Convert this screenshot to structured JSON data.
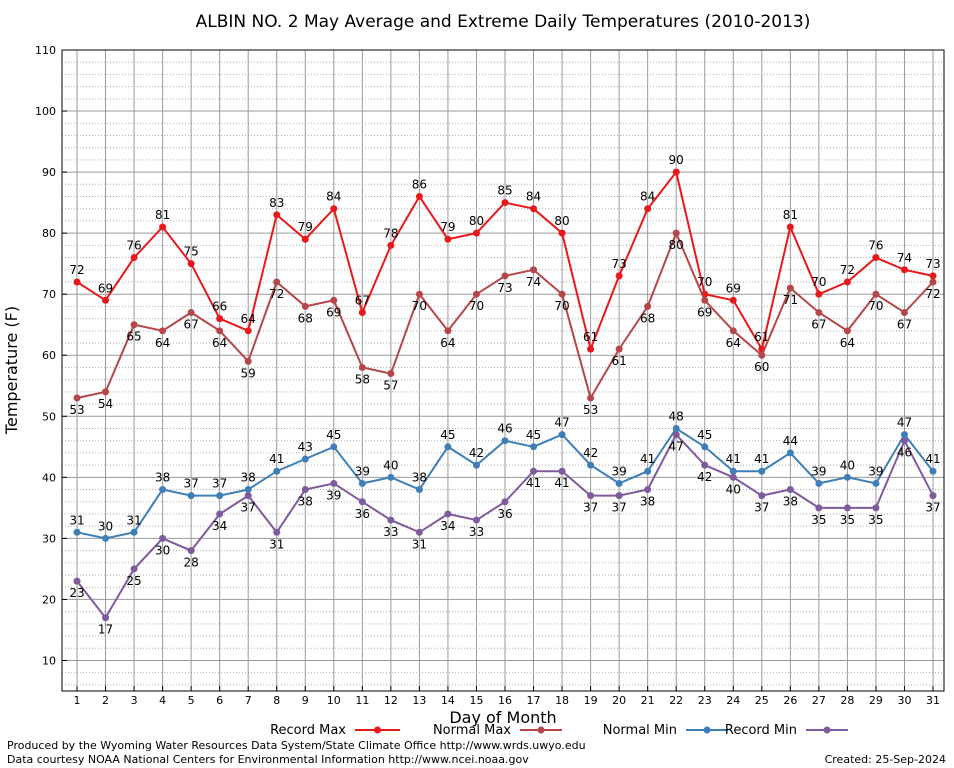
{
  "chart_data": {
    "type": "line",
    "title": "ALBIN NO. 2 May Average and Extreme Daily Temperatures (2010-2013)",
    "xlabel": "Day of Month",
    "ylabel": "Temperature (F)",
    "ylim": [
      5,
      110
    ],
    "yticks": [
      10,
      20,
      30,
      40,
      50,
      60,
      70,
      80,
      90,
      100,
      110
    ],
    "x": [
      1,
      2,
      3,
      4,
      5,
      6,
      7,
      8,
      9,
      10,
      11,
      12,
      13,
      14,
      15,
      16,
      17,
      18,
      19,
      20,
      21,
      22,
      23,
      24,
      25,
      26,
      27,
      28,
      29,
      30,
      31
    ],
    "grid": true,
    "legend_position": "bottom",
    "series": [
      {
        "name": "Record Max",
        "color": "#e8191c",
        "values": [
          72,
          69,
          76,
          81,
          75,
          66,
          64,
          83,
          79,
          84,
          67,
          78,
          86,
          79,
          80,
          85,
          84,
          80,
          61,
          73,
          84,
          90,
          70,
          69,
          61,
          81,
          70,
          72,
          76,
          74,
          73
        ]
      },
      {
        "name": "Normal Max",
        "color": "#b5474b",
        "values": [
          53,
          54,
          65,
          64,
          67,
          64,
          59,
          72,
          68,
          69,
          58,
          57,
          70,
          64,
          70,
          73,
          74,
          70,
          53,
          61,
          68,
          80,
          69,
          64,
          60,
          71,
          67,
          64,
          70,
          67,
          72
        ]
      },
      {
        "name": "Normal Min",
        "color": "#3f7fb8",
        "values": [
          31,
          30,
          31,
          38,
          37,
          37,
          38,
          41,
          43,
          45,
          39,
          40,
          38,
          45,
          42,
          46,
          45,
          47,
          42,
          39,
          41,
          48,
          45,
          41,
          41,
          44,
          39,
          40,
          39,
          47,
          41
        ]
      },
      {
        "name": "Record Min",
        "color": "#7f5a9c",
        "values": [
          23,
          17,
          25,
          30,
          28,
          34,
          37,
          31,
          38,
          39,
          36,
          33,
          31,
          34,
          33,
          36,
          41,
          41,
          37,
          37,
          38,
          47,
          42,
          40,
          37,
          38,
          35,
          35,
          35,
          46,
          37
        ]
      }
    ]
  },
  "footer": {
    "credit_line1": "Produced by the Wyoming Water Resources Data System/State Climate Office http://www.wrds.uwyo.edu",
    "credit_line2": "Data courtesy NOAA National Centers for Environmental Information http://www.ncei.noaa.gov",
    "created": "Created:  25-Sep-2024"
  }
}
